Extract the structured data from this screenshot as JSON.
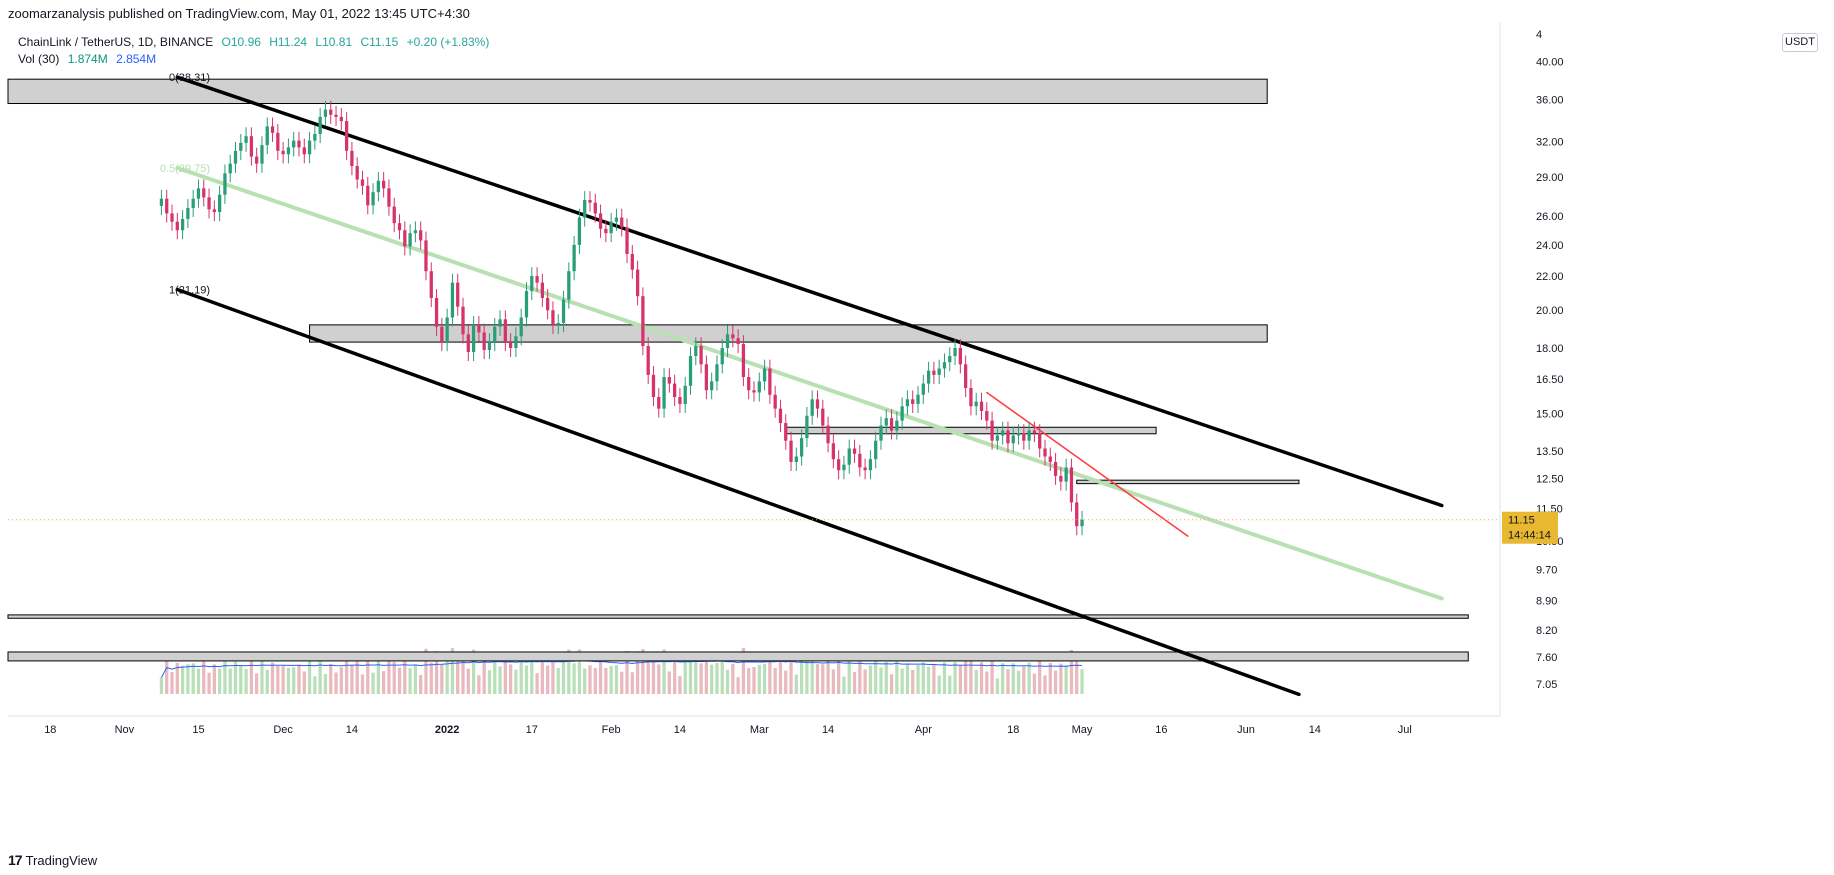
{
  "header": {
    "publish_line": "zoomarzanalysis published on TradingView.com, May 01, 2022 13:45 UTC+4:30"
  },
  "legend": {
    "symbol": "ChainLink / TetherUS, 1D, BINANCE",
    "o": "O10.96",
    "h": "H11.24",
    "l": "L10.81",
    "c": "C11.15",
    "change": "+0.20 (+1.83%)",
    "vol_label": "Vol (30)",
    "vol_a": "1.874M",
    "vol_b": "2.854M"
  },
  "currency_button": "USDT",
  "footer": {
    "brand": "TradingView",
    "logo_glyph": "17"
  },
  "colors": {
    "up": "#26a69a",
    "down": "#ef5350",
    "candle_up": "#2a9d7a",
    "candle_down": "#d6336c",
    "vol_up": "#b8dfb8",
    "vol_down": "#e8b9bd",
    "ma": "#2962ff",
    "price_line": "#f2a93b",
    "zone_fill": "#d0d0d0",
    "channel": "#000000",
    "mid": "#b8e0b3",
    "red_trend": "#ff3b3b"
  },
  "chart_data": {
    "type": "candlestick",
    "symbol": "ChainLink / TetherUS",
    "timeframe": "1D",
    "exchange": "BINANCE",
    "y_scale": "log",
    "y_range": [
      6.8,
      42.5
    ],
    "y_ticks": [
      "40.00",
      "36.00",
      "32.00",
      "29.00",
      "26.00",
      "24.00",
      "22.00",
      "20.00",
      "18.00",
      "16.50",
      "15.00",
      "13.50",
      "12.50",
      "11.50",
      "10.50",
      "9.70",
      "8.90",
      "8.20",
      "7.60",
      "7.05"
    ],
    "y_tick_values": [
      40,
      36,
      32,
      29,
      26,
      24,
      22,
      20,
      18,
      16.5,
      15,
      13.5,
      12.5,
      11.5,
      10.5,
      9.7,
      8.9,
      8.2,
      7.6,
      7.05
    ],
    "top_tick_partial": "4",
    "x_range": [
      "2021-10-10",
      "2022-07-19"
    ],
    "x_ticks": [
      {
        "label": "18",
        "date": "2021-10-18"
      },
      {
        "label": "Nov",
        "date": "2021-11-01"
      },
      {
        "label": "15",
        "date": "2021-11-15"
      },
      {
        "label": "Dec",
        "date": "2021-12-01"
      },
      {
        "label": "14",
        "date": "2021-12-14"
      },
      {
        "label": "2022",
        "date": "2022-01-01"
      },
      {
        "label": "17",
        "date": "2022-01-17"
      },
      {
        "label": "Feb",
        "date": "2022-02-01"
      },
      {
        "label": "14",
        "date": "2022-02-14"
      },
      {
        "label": "Mar",
        "date": "2022-03-01"
      },
      {
        "label": "14",
        "date": "2022-03-14"
      },
      {
        "label": "Apr",
        "date": "2022-04-01"
      },
      {
        "label": "18",
        "date": "2022-04-18"
      },
      {
        "label": "May",
        "date": "2022-05-01"
      },
      {
        "label": "16",
        "date": "2022-05-16"
      },
      {
        "label": "Jun",
        "date": "2022-06-01"
      },
      {
        "label": "14",
        "date": "2022-06-14"
      },
      {
        "label": "Jul",
        "date": "2022-07-01"
      }
    ],
    "last_price": "11.15",
    "countdown": "14:44:14",
    "fib_labels": [
      {
        "text": "0(38.31)",
        "value": 38.31
      },
      {
        "text": "0.5(29.75)",
        "value": 29.75
      },
      {
        "text": "1(21.19)",
        "value": 21.19
      }
    ],
    "candle_closes": [
      27.3,
      26.2,
      25.6,
      25.0,
      25.8,
      26.6,
      27.3,
      28.1,
      27.4,
      26.5,
      26.3,
      27.6,
      29.3,
      30.1,
      31.2,
      31.9,
      32.5,
      30.7,
      30.1,
      31.7,
      33.4,
      32.8,
      31.2,
      30.9,
      31.5,
      32.1,
      31.5,
      30.9,
      32.1,
      32.7,
      34.3,
      35.0,
      34.5,
      34.3,
      33.9,
      31.2,
      29.9,
      28.8,
      28.3,
      26.8,
      27.8,
      28.7,
      28.1,
      26.7,
      25.5,
      25.0,
      23.9,
      24.8,
      25.0,
      24.3,
      22.3,
      20.7,
      19.1,
      18.3,
      19.6,
      21.6,
      20.2,
      18.7,
      17.8,
      19.2,
      18.8,
      17.9,
      18.3,
      19.1,
      19.5,
      18.3,
      18.0,
      18.6,
      19.6,
      21.1,
      22.0,
      21.6,
      20.7,
      20.0,
      19.2,
      19.3,
      20.6,
      22.3,
      24.0,
      25.9,
      27.2,
      27.0,
      26.2,
      25.1,
      24.8,
      25.6,
      25.9,
      25.2,
      23.4,
      22.4,
      20.8,
      18.1,
      16.7,
      15.7,
      15.2,
      16.6,
      16.3,
      15.7,
      15.4,
      16.2,
      17.6,
      18.1,
      17.2,
      16.0,
      16.4,
      17.2,
      18.0,
      18.7,
      18.5,
      18.2,
      16.6,
      16.0,
      15.9,
      16.4,
      17.0,
      15.8,
      15.2,
      14.6,
      13.9,
      13.1,
      13.3,
      14.0,
      14.9,
      15.6,
      15.2,
      14.5,
      13.8,
      13.2,
      12.8,
      13.0,
      13.6,
      13.4,
      12.9,
      12.8,
      13.2,
      13.9,
      14.5,
      14.8,
      14.3,
      14.7,
      15.3,
      15.6,
      15.4,
      15.8,
      16.3,
      16.9,
      16.7,
      17.0,
      17.3,
      17.6,
      18.0,
      17.2,
      16.1,
      15.3,
      15.5,
      15.1,
      14.7,
      13.9,
      14.1,
      14.3,
      13.8,
      14.1,
      14.2,
      13.9,
      14.3,
      14.2,
      13.6,
      13.3,
      13.1,
      12.6,
      12.4,
      12.9,
      11.7,
      10.95,
      11.15
    ],
    "volume": {
      "ma_length": 30,
      "values_shown": [
        "1.874M",
        "2.854M"
      ]
    },
    "annotations": [
      {
        "type": "zone",
        "price_low": 35.6,
        "price_high": 38.1,
        "from": "2021-10-10",
        "to": "2022-06-05"
      },
      {
        "type": "zone",
        "price_low": 18.3,
        "price_high": 19.2,
        "from": "2021-12-06",
        "to": "2022-06-05"
      },
      {
        "type": "zone",
        "price_low": 14.17,
        "price_high": 14.43,
        "from": "2022-03-06",
        "to": "2022-05-15"
      },
      {
        "type": "zone",
        "price_low": 12.33,
        "price_high": 12.45,
        "from": "2022-04-30",
        "to": "2022-06-11"
      },
      {
        "type": "zone",
        "price_low": 8.47,
        "price_high": 8.55,
        "from": "2021-10-10",
        "to": "2022-07-13"
      },
      {
        "type": "zone",
        "price_low": 7.52,
        "price_high": 7.71,
        "from": "2021-10-10",
        "to": "2022-07-13"
      },
      {
        "type": "line",
        "role": "channel-upper",
        "p1": {
          "date": "2021-11-11",
          "price": 38.31
        },
        "p2": {
          "date": "2022-07-08",
          "price": 11.6
        }
      },
      {
        "type": "line",
        "role": "channel-middle",
        "p1": {
          "date": "2021-11-11",
          "price": 29.75
        },
        "p2": {
          "date": "2022-07-08",
          "price": 8.95
        }
      },
      {
        "type": "line",
        "role": "channel-lower",
        "p1": {
          "date": "2021-11-11",
          "price": 21.19
        },
        "p2": {
          "date": "2022-06-11",
          "price": 6.85
        }
      },
      {
        "type": "line",
        "role": "descending-trendline",
        "p1": {
          "date": "2022-04-13",
          "price": 15.9
        },
        "p2": {
          "date": "2022-05-21",
          "price": 10.65
        }
      }
    ]
  }
}
